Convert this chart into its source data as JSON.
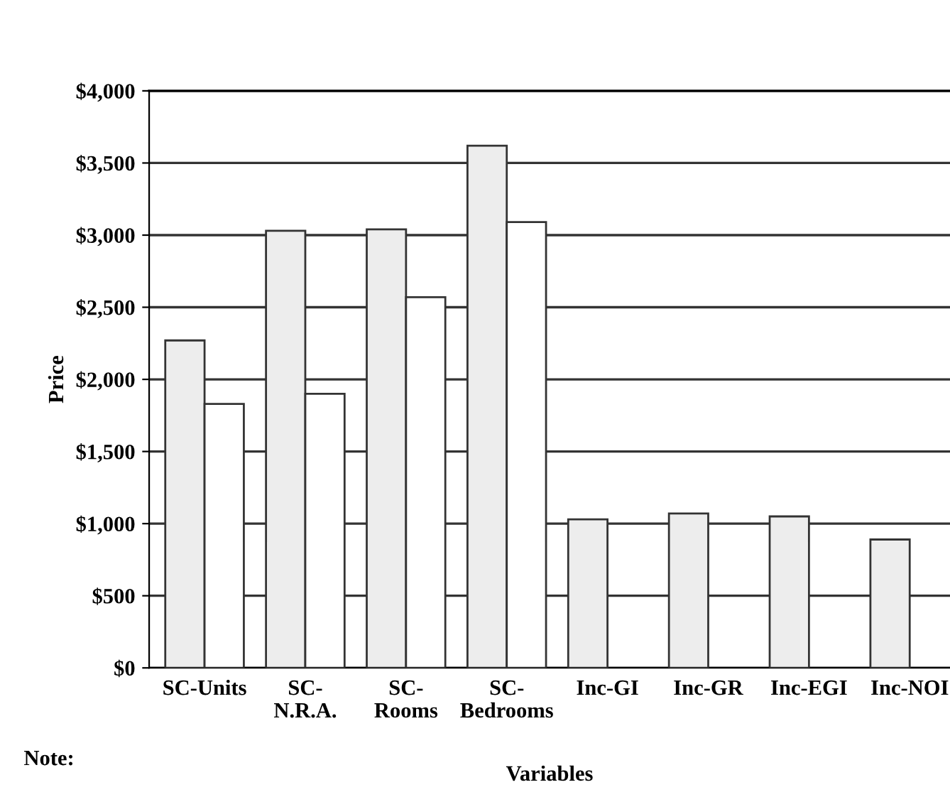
{
  "chart_data": {
    "type": "bar",
    "xlabel": "Variables",
    "ylabel": "Price",
    "categories": [
      "SC-Units",
      "SC-\nN.R.A.",
      "SC-\nRooms",
      "SC-\nBedrooms",
      "Inc-GI",
      "Inc-GR",
      "Inc-EGI",
      "Inc-NOI"
    ],
    "series": [
      {
        "color": "#ededed",
        "values": [
          2270,
          3030,
          3040,
          3620,
          1030,
          1070,
          1050,
          890
        ]
      },
      {
        "color": "#ffffff",
        "values": [
          1830,
          1900,
          2570,
          3090,
          null,
          null,
          null,
          null
        ]
      }
    ],
    "ylim": [
      0,
      4000
    ],
    "yticks": [
      {
        "value": 0,
        "label": "$0"
      },
      {
        "value": 500,
        "label": "$500"
      },
      {
        "value": 1000,
        "label": "$1,000"
      },
      {
        "value": 1500,
        "label": "$1,500"
      },
      {
        "value": 2000,
        "label": "$2,000"
      },
      {
        "value": 2500,
        "label": "$2,500"
      },
      {
        "value": 3000,
        "label": "$3,000"
      },
      {
        "value": 3500,
        "label": "$3,500"
      },
      {
        "value": 4000,
        "label": "$4,000"
      }
    ],
    "grid": "y",
    "legend": false,
    "annotations": [
      "Note:"
    ]
  }
}
